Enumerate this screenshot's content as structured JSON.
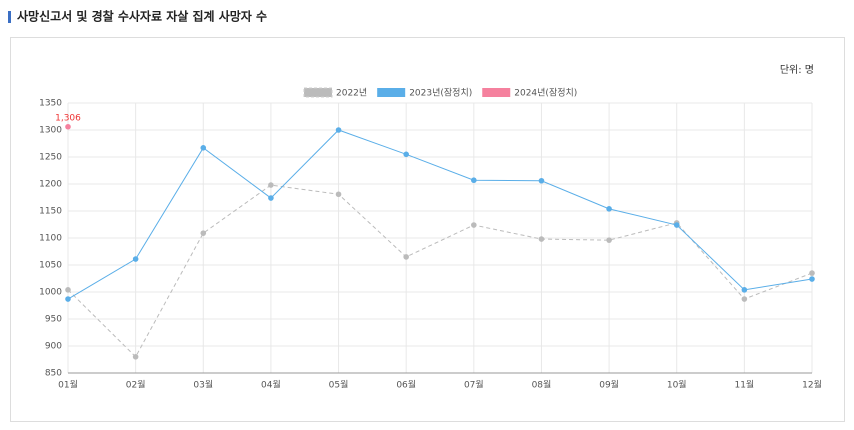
{
  "chart_data": {
    "type": "line",
    "title": "사망신고서 및 경찰 수사자료 자살 집계 사망자 수",
    "unit": "단위: 명",
    "categories": [
      "01월",
      "02월",
      "03월",
      "04월",
      "05월",
      "06월",
      "07월",
      "08월",
      "09월",
      "10월",
      "11월",
      "12월"
    ],
    "series": [
      {
        "name": "2022년",
        "color": "#bbbbbb",
        "dashed": true,
        "values": [
          1004,
          880,
          1109,
          1198,
          1181,
          1065,
          1124,
          1098,
          1096,
          1128,
          987,
          1035
        ]
      },
      {
        "name": "2023년(잠정치)",
        "color": "#5aaee8",
        "dashed": false,
        "values": [
          987,
          1061,
          1267,
          1174,
          1300,
          1255,
          1207,
          1206,
          1154,
          1124,
          1004,
          1024
        ]
      },
      {
        "name": "2024년(잠정치)",
        "color": "#f5819e",
        "dashed": false,
        "values": [
          1306,
          null,
          null,
          null,
          null,
          null,
          null,
          null,
          null,
          null,
          null,
          null
        ],
        "value_labels": [
          "1,306",
          null,
          null,
          null,
          null,
          null,
          null,
          null,
          null,
          null,
          null,
          null
        ]
      }
    ],
    "ylim": [
      850,
      1350
    ],
    "yticks": [
      850,
      900,
      950,
      1000,
      1050,
      1100,
      1150,
      1200,
      1250,
      1300,
      1350
    ],
    "grid": true,
    "legend": "top"
  }
}
